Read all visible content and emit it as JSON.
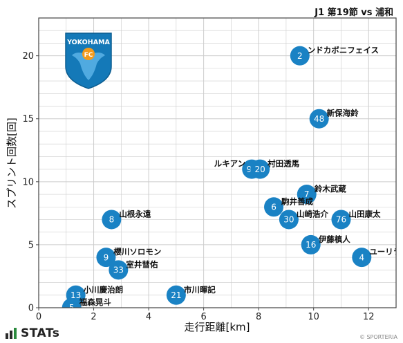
{
  "header": {
    "match": "J1 第19節 vs 浦和"
  },
  "footer": {
    "brand": "STATs",
    "credit": "© SPORTERIA"
  },
  "logo": {
    "text": "YOKOHAMA",
    "letters": "FC"
  },
  "colors": {
    "point": "#1a82c4",
    "grid": "#cccccc",
    "axis": "#444444"
  },
  "chart_data": {
    "type": "scatter",
    "xlabel": "走行距離[km]",
    "ylabel": "スプリント回数[回]",
    "xlim": [
      0,
      13
    ],
    "ylim": [
      0,
      23
    ],
    "xticks": [
      0,
      2,
      4,
      6,
      8,
      10,
      12
    ],
    "yticks": [
      0,
      5,
      10,
      15,
      20
    ],
    "grid": true,
    "points": [
      {
        "num": "2",
        "name": "ンドカボニフェイス",
        "x": 9.5,
        "y": 20
      },
      {
        "num": "48",
        "name": "新保海鈴",
        "x": 10.2,
        "y": 15
      },
      {
        "num": "91",
        "name": "ルキアン",
        "x": 7.75,
        "y": 11
      },
      {
        "num": "20",
        "name": "村田透馬",
        "x": 8.05,
        "y": 11
      },
      {
        "num": "7",
        "name": "鈴木武蔵",
        "x": 9.75,
        "y": 9
      },
      {
        "num": "6",
        "name": "駒井善成",
        "x": 8.55,
        "y": 8
      },
      {
        "num": "30",
        "name": "山崎浩介",
        "x": 9.1,
        "y": 7
      },
      {
        "num": "76",
        "name": "山田康太",
        "x": 11.0,
        "y": 7
      },
      {
        "num": "8",
        "name": "山根永遠",
        "x": 2.65,
        "y": 7
      },
      {
        "num": "16",
        "name": "伊藤槙人",
        "x": 9.9,
        "y": 5
      },
      {
        "num": "4",
        "name": "ユーリララ",
        "x": 11.75,
        "y": 4
      },
      {
        "num": "9",
        "name": "櫻川ソロモン",
        "x": 2.45,
        "y": 4
      },
      {
        "num": "33",
        "name": "室井彗佑",
        "x": 2.9,
        "y": 3
      },
      {
        "num": "13",
        "name": "小川慶治朗",
        "x": 1.35,
        "y": 1
      },
      {
        "num": "21",
        "name": "市川暉記",
        "x": 5.0,
        "y": 1
      },
      {
        "num": "5",
        "name": "福森晃斗",
        "x": 1.2,
        "y": 0
      }
    ]
  }
}
